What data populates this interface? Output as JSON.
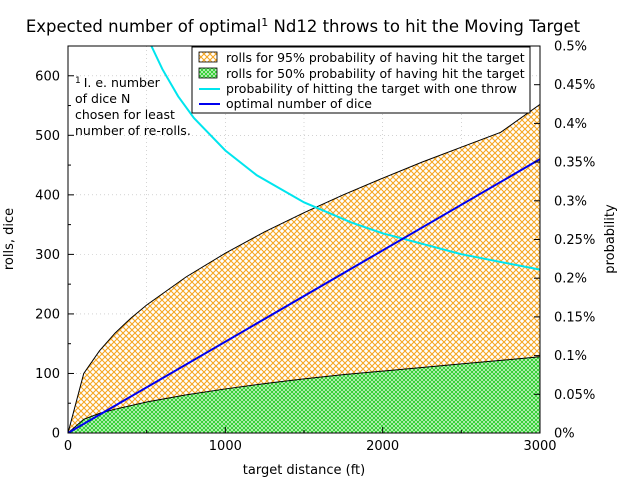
{
  "chart_data": {
    "type": "area",
    "title_pre": "Expected number of optimal",
    "title_sup": "1",
    "title_post": " Nd12 throws to hit the Moving Target",
    "xlabel": "target distance (ft)",
    "ylabel": "rolls, dice",
    "y2label": "probability",
    "xlim": [
      0,
      3000
    ],
    "ylim": [
      0,
      650
    ],
    "y2lim": [
      0,
      0.5
    ],
    "xticks": [
      0,
      1000,
      2000,
      3000
    ],
    "yticks": [
      0,
      100,
      200,
      300,
      400,
      500,
      600
    ],
    "y2ticks": [
      "0%",
      "0.05%",
      "0.1%",
      "0.15%",
      "0.2%",
      "0.25%",
      "0.3%",
      "0.35%",
      "0.4%",
      "0.45%",
      "0.5%"
    ],
    "grid": true,
    "legend_position": "top-right",
    "annotation": {
      "sup": "1",
      "lines": [
        "I. e. number",
        "of dice N",
        "chosen for least",
        "number of re-rolls."
      ]
    },
    "series": [
      {
        "name": "rolls for 95% probability of having hit the target",
        "style": "crosshatch",
        "color": "#f5a623",
        "x": [
          0,
          100,
          200,
          300,
          400,
          500,
          750,
          1000,
          1250,
          1500,
          1750,
          2000,
          2250,
          2500,
          2750,
          3000
        ],
        "values": [
          0,
          100,
          138,
          168,
          193,
          215,
          262,
          302,
          338,
          370,
          400,
          428,
          455,
          480,
          505,
          552
        ]
      },
      {
        "name": "rolls for 50% probability of having hit the target",
        "style": "crosshatch",
        "color": "#22dd22",
        "x": [
          0,
          100,
          200,
          300,
          500,
          750,
          1000,
          1250,
          1500,
          1750,
          2000,
          2250,
          2500,
          2750,
          3000
        ],
        "values": [
          0,
          23,
          33,
          40,
          52,
          64,
          74,
          83,
          91,
          98,
          104,
          110,
          116,
          122,
          128
        ]
      },
      {
        "name": "probability of hitting the target with one throw",
        "axis": "y2",
        "color": "#00e5ee",
        "x": [
          530,
          600,
          700,
          800,
          1000,
          1200,
          1500,
          1800,
          2000,
          2500,
          3000
        ],
        "values": [
          0.5,
          0.47,
          0.435,
          0.407,
          0.365,
          0.333,
          0.298,
          0.272,
          0.258,
          0.231,
          0.211
        ]
      },
      {
        "name": "optimal number of dice",
        "color": "#0000ee",
        "x": [
          0,
          3000
        ],
        "values": [
          0,
          460
        ]
      }
    ]
  }
}
